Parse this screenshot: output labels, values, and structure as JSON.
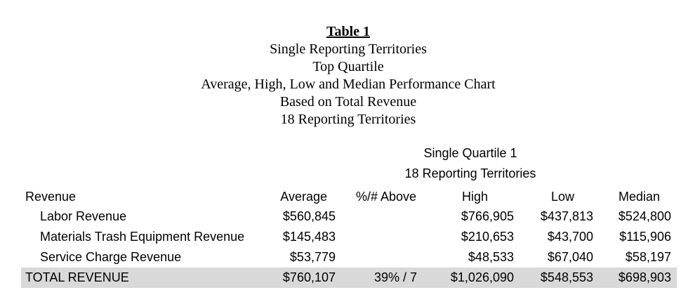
{
  "title": {
    "table_label": "Table 1",
    "lines": [
      "Single Reporting Territories",
      "Top Quartile",
      "Average, High, Low and Median Performance Chart",
      "Based on Total Revenue",
      "18 Reporting Territories"
    ]
  },
  "group_header": {
    "line1": "Single Quartile 1",
    "line2": "18 Reporting Territories"
  },
  "columns": {
    "label": "Revenue",
    "average": "Average",
    "above": "%/# Above",
    "high": "High",
    "low": "Low",
    "median": "Median"
  },
  "rows": [
    {
      "label": "Labor Revenue",
      "average": "$560,845",
      "above": "",
      "high": "$766,905",
      "low": "$437,813",
      "median": "$524,800"
    },
    {
      "label": "Materials Trash Equipment Revenue",
      "average": "$145,483",
      "above": "",
      "high": "$210,653",
      "low": "$43,700",
      "median": "$115,906"
    },
    {
      "label": "Service Charge Revenue",
      "average": "$53,779",
      "above": "",
      "high": "$48,533",
      "low": "$67,040",
      "median": "$58,197"
    }
  ],
  "total": {
    "label": "TOTAL REVENUE",
    "average": "$760,107",
    "above": "39% / 7",
    "high": "$1,026,090",
    "low": "$548,553",
    "median": "$698,903"
  }
}
